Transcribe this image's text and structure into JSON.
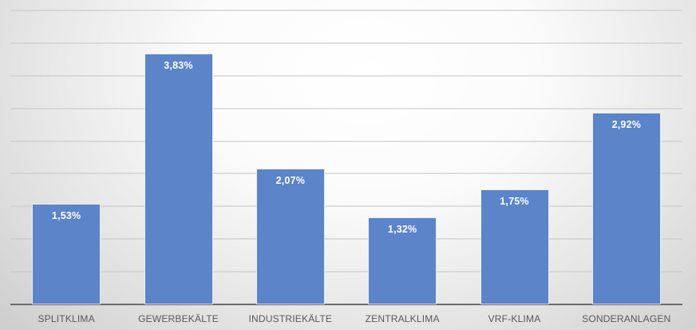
{
  "chart_data": {
    "type": "bar",
    "title": "",
    "xlabel": "",
    "ylabel": "",
    "categories": [
      "SPLITKLIMA",
      "GEWERBEKÄLTE",
      "INDUSTRIEKÄLTE",
      "ZENTRALKLIMA",
      "VRF-KLIMA",
      "SONDERANLAGEN"
    ],
    "values": [
      1.53,
      3.83,
      2.07,
      1.32,
      1.75,
      2.92
    ],
    "value_labels": [
      "1,53%",
      "3,83%",
      "2,07%",
      "1,32%",
      "1,75%",
      "2,92%"
    ],
    "unit": "%",
    "ylim": [
      0,
      4.5
    ],
    "y_gridlines": [
      0.5,
      1.0,
      1.5,
      2.0,
      2.5,
      3.0,
      3.5,
      4.0,
      4.5
    ],
    "y_tick_labels_visible": false,
    "grid": true,
    "legend": null,
    "bar_color": "#5b84c9",
    "data_label_color": "#ffffff",
    "category_label_color": "#595959"
  }
}
